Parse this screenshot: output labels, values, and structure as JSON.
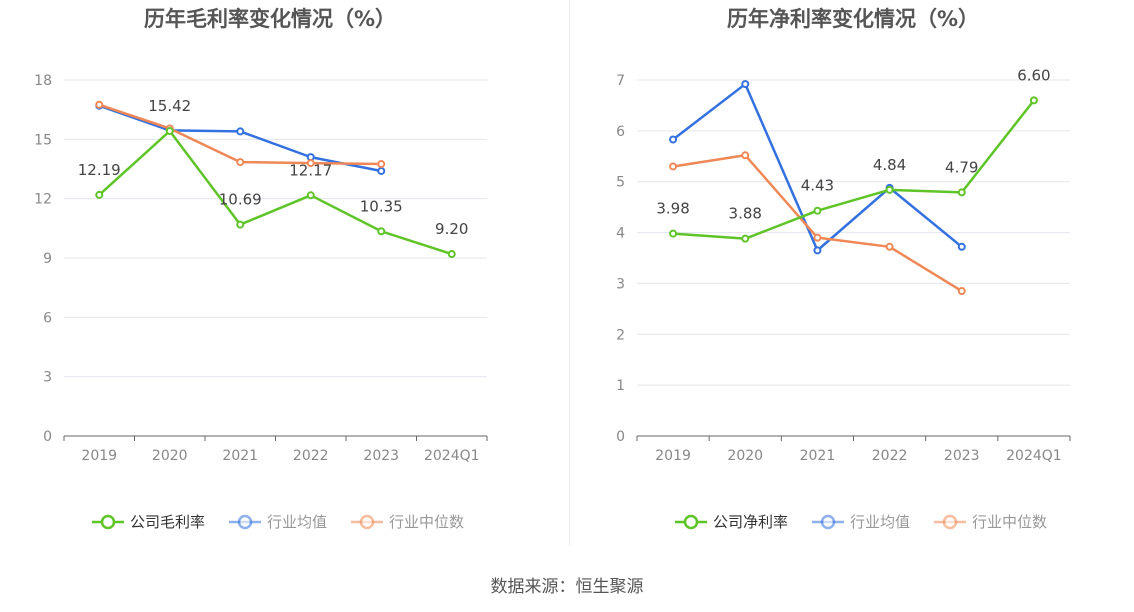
{
  "source": "数据来源：恒生聚源",
  "colors": {
    "company": "#5ec427",
    "industry_avg": "#3371e0",
    "industry_median": "#ef8856",
    "axis": "#666666",
    "grid": "#e3e6ee",
    "tick": "#888888",
    "title": "#555555",
    "label": "#444444"
  },
  "chart_data": [
    {
      "type": "line",
      "title": "历年毛利率变化情况（%）",
      "categories": [
        "2019",
        "2020",
        "2021",
        "2022",
        "2023",
        "2024Q1"
      ],
      "ylim": [
        0,
        18
      ],
      "yticks": [
        0,
        3,
        6,
        9,
        12,
        15,
        18
      ],
      "series": [
        {
          "name": "公司毛利率",
          "key": "company",
          "values": [
            12.19,
            15.42,
            10.69,
            12.17,
            10.35,
            9.2
          ],
          "labels": [
            "12.19",
            "15.42",
            "10.69",
            "12.17",
            "10.35",
            "9.20"
          ]
        },
        {
          "name": "行业均值",
          "key": "industry_avg",
          "values": [
            16.7,
            15.45,
            15.4,
            14.1,
            13.4,
            null
          ]
        },
        {
          "name": "行业中位数",
          "key": "industry_median",
          "values": [
            16.75,
            15.55,
            13.85,
            13.8,
            13.75,
            null
          ]
        }
      ]
    },
    {
      "type": "line",
      "title": "历年净利率变化情况（%）",
      "categories": [
        "2019",
        "2020",
        "2021",
        "2022",
        "2023",
        "2024Q1"
      ],
      "ylim": [
        0,
        7
      ],
      "yticks": [
        0,
        1,
        2,
        3,
        4,
        5,
        6,
        7
      ],
      "series": [
        {
          "name": "公司净利率",
          "key": "company",
          "values": [
            3.98,
            3.88,
            4.43,
            4.84,
            4.79,
            6.6
          ],
          "labels": [
            "3.98",
            "3.88",
            "4.43",
            "4.84",
            "4.79",
            "6.60"
          ]
        },
        {
          "name": "行业均值",
          "key": "industry_avg",
          "values": [
            5.83,
            6.92,
            3.65,
            4.88,
            3.72,
            null
          ]
        },
        {
          "name": "行业中位数",
          "key": "industry_median",
          "values": [
            5.3,
            5.52,
            3.9,
            3.72,
            2.85,
            null
          ]
        }
      ]
    }
  ]
}
